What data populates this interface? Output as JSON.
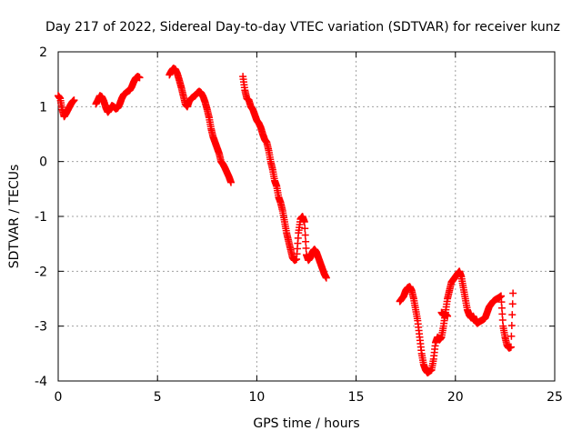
{
  "chart_data": {
    "type": "scatter",
    "title": "Day 217 of 2022, Sidereal Day-to-day VTEC variation (SDTVAR) for receiver kunz",
    "xlabel": "GPS time / hours",
    "ylabel": "SDTVAR / TECUs",
    "xlim": [
      0,
      25
    ],
    "ylim": [
      -4,
      2
    ],
    "xticks": [
      "0",
      "5",
      "10",
      "15",
      "20",
      "25"
    ],
    "yticks": [
      "2",
      "1",
      "0",
      "-1",
      "-2",
      "-3",
      "-4"
    ],
    "grid": true,
    "legend": "none",
    "marker": "plus",
    "color": "#ff0000",
    "series": [
      {
        "x": [
          0.0,
          0.1,
          0.2,
          0.3,
          0.4,
          0.5,
          0.6,
          0.7,
          0.8
        ],
        "y": [
          1.2,
          1.15,
          0.95,
          0.82,
          0.88,
          0.95,
          1.02,
          1.08,
          1.12
        ]
      },
      {
        "x": [
          1.9,
          2.0,
          2.1,
          2.2,
          2.3,
          2.4,
          2.5,
          2.6,
          2.7,
          2.8,
          2.9,
          3.0,
          3.1,
          3.2,
          3.3,
          3.4,
          3.5,
          3.6,
          3.7,
          3.8,
          3.9,
          4.0,
          4.1
        ],
        "y": [
          1.05,
          1.12,
          1.2,
          1.18,
          1.1,
          0.98,
          0.9,
          0.95,
          1.02,
          1.0,
          0.96,
          0.98,
          1.05,
          1.15,
          1.22,
          1.25,
          1.28,
          1.3,
          1.36,
          1.45,
          1.52,
          1.55,
          1.53
        ]
      },
      {
        "x": [
          5.6,
          5.7,
          5.8,
          5.9,
          6.0,
          6.1,
          6.2,
          6.3,
          6.4,
          6.5,
          6.6,
          6.7,
          6.8,
          6.9,
          7.0,
          7.1,
          7.2,
          7.3,
          7.4,
          7.5,
          7.6,
          7.7,
          7.8,
          7.9,
          8.0,
          8.1,
          8.2,
          8.3,
          8.4,
          8.5,
          8.6,
          8.7
        ],
        "y": [
          1.58,
          1.65,
          1.7,
          1.68,
          1.6,
          1.48,
          1.35,
          1.2,
          1.05,
          1.0,
          1.1,
          1.15,
          1.18,
          1.2,
          1.25,
          1.28,
          1.25,
          1.18,
          1.08,
          0.95,
          0.8,
          0.6,
          0.45,
          0.35,
          0.25,
          0.15,
          0.0,
          -0.05,
          -0.12,
          -0.2,
          -0.28,
          -0.38
        ]
      },
      {
        "x": [
          9.3,
          9.4,
          9.5,
          9.6,
          9.7,
          9.8,
          9.9,
          10.0,
          10.1,
          10.2,
          10.3,
          10.4,
          10.5,
          10.6,
          10.7,
          10.8,
          10.9,
          11.0,
          11.1,
          11.2,
          11.3,
          11.4,
          11.5,
          11.6,
          11.7,
          11.8,
          11.9,
          12.0,
          12.1,
          12.2,
          12.3,
          12.4,
          12.5,
          12.6,
          12.7,
          12.8,
          12.9,
          13.0,
          13.1,
          13.2,
          13.3,
          13.4,
          13.5
        ],
        "y": [
          1.55,
          1.3,
          1.15,
          1.12,
          1.0,
          0.95,
          0.85,
          0.75,
          0.7,
          0.62,
          0.5,
          0.4,
          0.35,
          0.2,
          0.0,
          -0.15,
          -0.35,
          -0.45,
          -0.65,
          -0.75,
          -0.9,
          -1.1,
          -1.3,
          -1.45,
          -1.6,
          -1.75,
          -1.8,
          -1.78,
          -1.3,
          -1.05,
          -1.0,
          -1.1,
          -1.7,
          -1.8,
          -1.75,
          -1.65,
          -1.6,
          -1.65,
          -1.75,
          -1.85,
          -1.95,
          -2.05,
          -2.12
        ]
      },
      {
        "x": [
          17.2,
          17.3,
          17.4,
          17.5,
          17.6,
          17.7,
          17.8,
          17.9,
          18.0,
          18.1,
          18.2,
          18.3,
          18.4,
          18.5,
          18.6,
          18.7,
          18.8,
          18.9,
          19.0,
          19.1,
          19.2,
          19.3,
          19.4,
          19.5,
          19.6,
          19.7,
          19.8,
          19.9,
          20.0,
          20.1,
          20.2,
          20.3,
          20.4,
          20.5,
          20.6,
          20.7,
          20.8,
          20.9,
          21.0,
          21.1,
          21.2,
          21.3,
          21.4,
          21.5,
          21.6,
          21.7,
          21.8,
          21.9,
          22.0,
          22.1,
          22.2,
          22.3,
          22.4,
          22.5,
          22.6,
          22.7,
          22.8,
          22.9
        ],
        "y": [
          -2.55,
          -2.5,
          -2.45,
          -2.35,
          -2.3,
          -2.28,
          -2.35,
          -2.5,
          -2.7,
          -2.9,
          -3.2,
          -3.5,
          -3.7,
          -3.8,
          -3.85,
          -3.82,
          -3.8,
          -3.6,
          -3.3,
          -3.2,
          -3.25,
          -3.2,
          -3.0,
          -2.75,
          -2.5,
          -2.35,
          -2.2,
          -2.15,
          -2.1,
          -2.05,
          -2.0,
          -2.1,
          -2.3,
          -2.5,
          -2.7,
          -2.8,
          -2.85,
          -2.82,
          -2.9,
          -2.95,
          -2.92,
          -2.9,
          -2.88,
          -2.85,
          -2.75,
          -2.65,
          -2.6,
          -2.55,
          -2.52,
          -2.5,
          -2.48,
          -2.45,
          -3.0,
          -3.2,
          -3.35,
          -3.4,
          -3.38,
          -2.4
        ]
      },
      {
        "x": [
          19.3,
          19.4,
          19.5,
          19.6
        ],
        "y": [
          -2.75,
          -2.8,
          -2.78,
          -2.82
        ]
      }
    ]
  }
}
